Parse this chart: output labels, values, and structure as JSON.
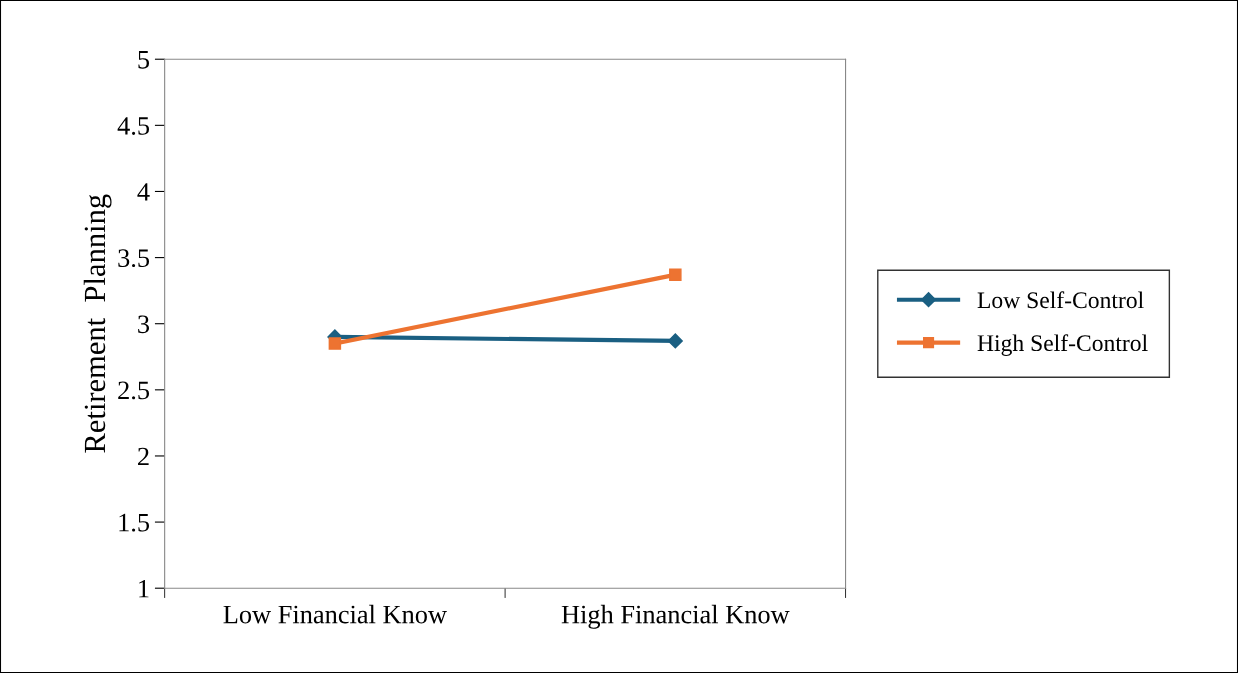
{
  "chart_data": {
    "type": "line",
    "ylabel": "Retirement  Planning",
    "categories": [
      "Low Financial Know",
      "High Financial Know"
    ],
    "series": [
      {
        "name": "Low Self-Control",
        "color": "#1a5f82",
        "marker": "diamond",
        "values": [
          2.9,
          2.87
        ]
      },
      {
        "name": "High Self-Control",
        "color": "#ed7331",
        "marker": "square",
        "values": [
          2.85,
          3.37
        ]
      }
    ],
    "ylim": [
      1,
      5
    ],
    "yticks": [
      1,
      1.5,
      2,
      2.5,
      3,
      3.5,
      4,
      4.5,
      5
    ],
    "grid": false,
    "legend": "right",
    "line_style": "solid"
  }
}
